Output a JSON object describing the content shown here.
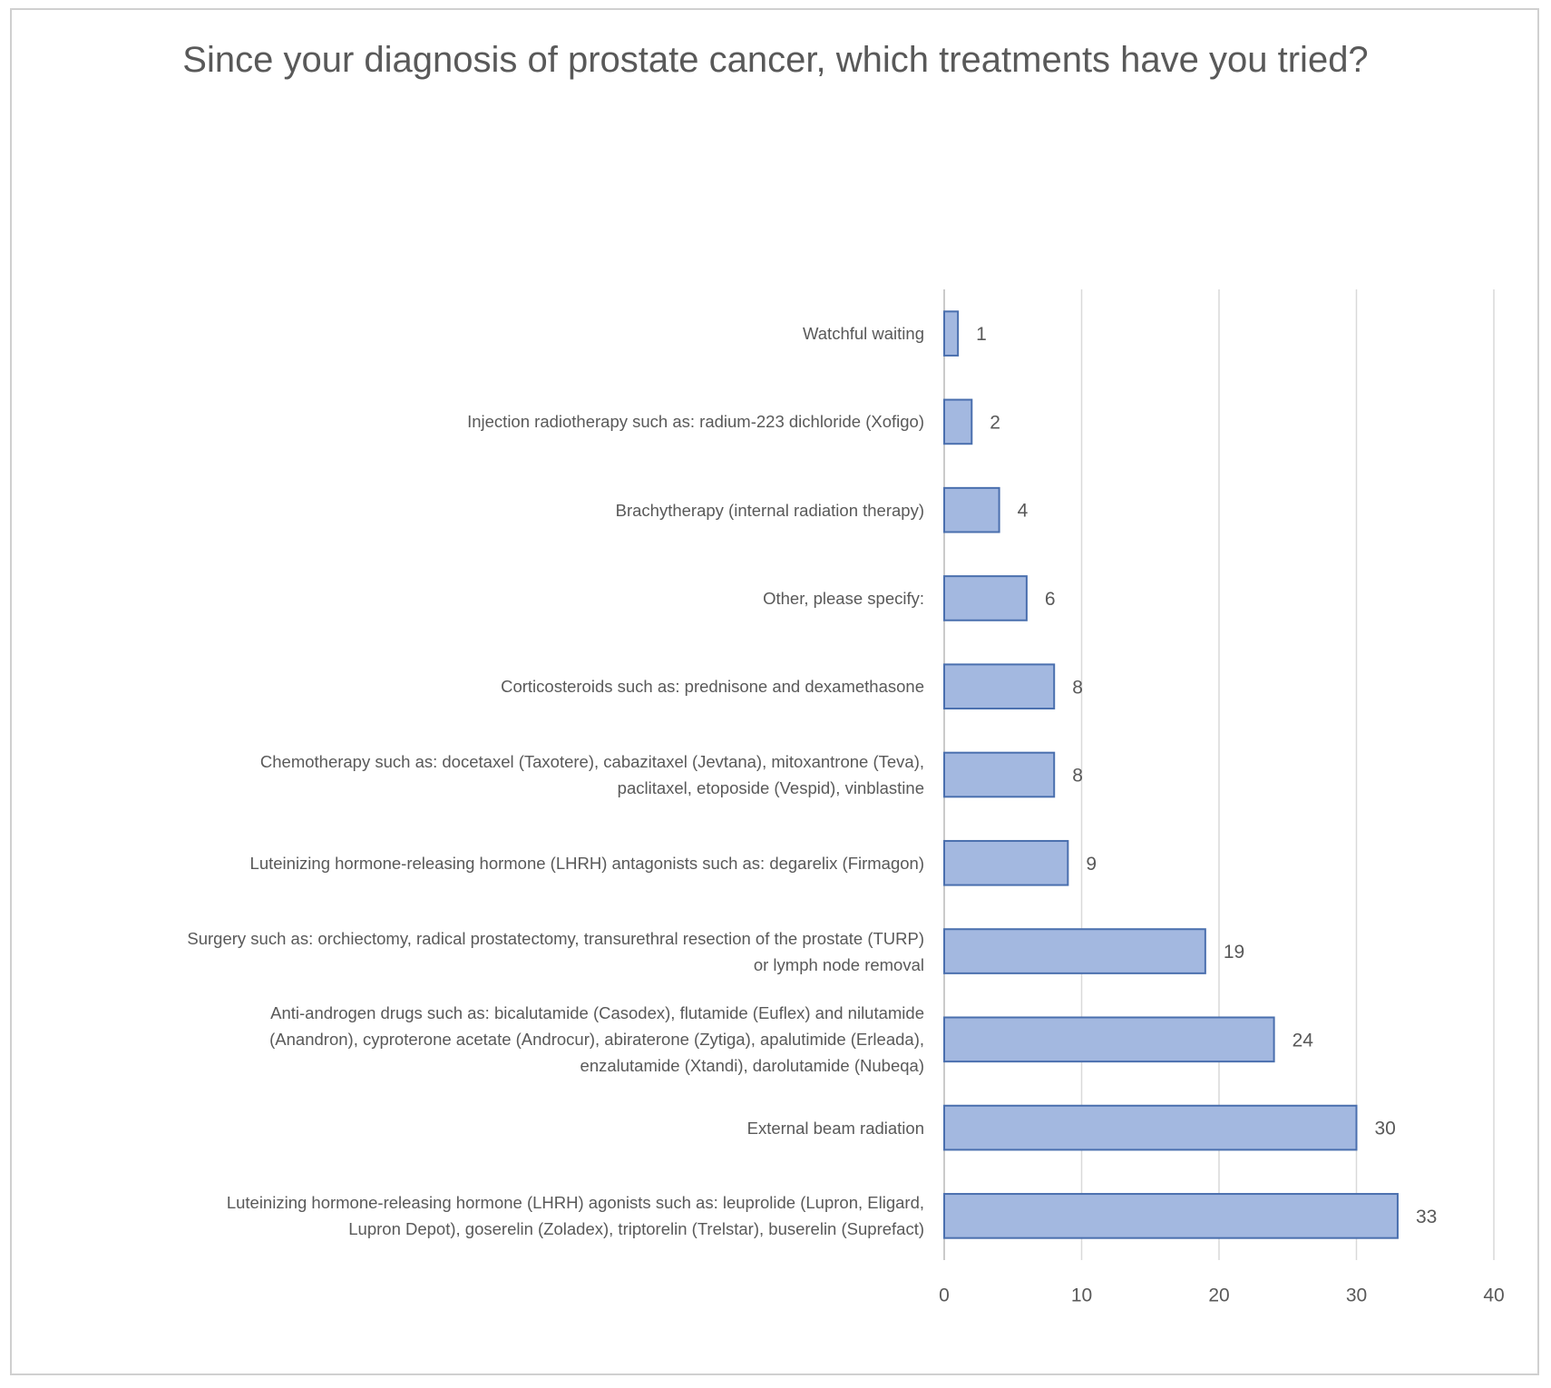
{
  "chart_data": {
    "type": "barh",
    "title": "Since your diagnosis of prostate cancer, which treatments have you tried?",
    "categories": [
      "Watchful waiting",
      "Injection radiotherapy such as: radium-223 dichloride (Xofigo)",
      "Brachytherapy (internal radiation therapy)",
      "Other, please specify:",
      "Corticosteroids such as: prednisone and dexamethasone",
      "Chemotherapy such as: docetaxel (Taxotere), cabazitaxel (Jevtana), mitoxantrone (Teva), paclitaxel, etoposide (Vespid), vinblastine",
      "Luteinizing hormone-releasing hormone (LHRH) antagonists such as: degarelix (Firmagon)",
      "Surgery such as: orchiectomy, radical prostatectomy, transurethral resection of the prostate (TURP) or lymph node removal",
      "Anti-androgen drugs such as: bicalutamide (Casodex), flutamide (Euflex) and nilutamide (Anandron), cyproterone acetate (Androcur), abiraterone (Zytiga), apalutimide (Erleada), enzalutamide (Xtandi), darolutamide (Nubeqa)",
      "External beam radiation",
      "Luteinizing hormone-releasing hormone (LHRH) agonists such as: leuprolide (Lupron, Eligard, Lupron Depot), goserelin (Zoladex), triptorelin (Trelstar), buserelin (Suprefact)"
    ],
    "values": [
      1,
      2,
      4,
      6,
      8,
      8,
      9,
      19,
      24,
      30,
      33
    ],
    "color": "#a3b8e0",
    "edgecolor": "#4a6fae",
    "xlim": [
      0,
      40
    ],
    "xticks": [
      0,
      10,
      20,
      30,
      40
    ],
    "grid": true
  }
}
